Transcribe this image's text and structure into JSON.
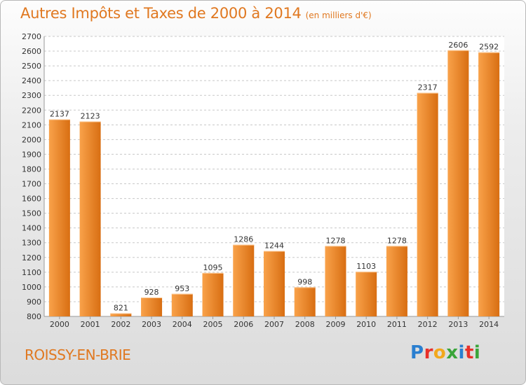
{
  "title": "Autres Impôts et Taxes de 2000 à 2014",
  "subtitle": "(en milliers d'€)",
  "place": "ROISSY-EN-BRIE",
  "logo": {
    "letters": [
      "P",
      "r",
      "o",
      "x",
      "i",
      "t",
      "i"
    ],
    "colors": [
      "#2a7fd0",
      "#e8302a",
      "#f2a81c",
      "#3aa53a",
      "#2a7fd0",
      "#e8302a",
      "#3aa53a"
    ]
  },
  "colors": {
    "bar_light": "#f9a24a",
    "bar_dark": "#d86e12",
    "title": "#e07820",
    "grid": "#c8c8c8"
  },
  "chart_data": {
    "type": "bar",
    "categories": [
      "2000",
      "2001",
      "2002",
      "2003",
      "2004",
      "2005",
      "2006",
      "2007",
      "2008",
      "2009",
      "2010",
      "2011",
      "2012",
      "2013",
      "2014"
    ],
    "values": [
      2137,
      2123,
      821,
      928,
      953,
      1095,
      1286,
      1244,
      998,
      1278,
      1103,
      1278,
      2317,
      2606,
      2592
    ],
    "ylim": [
      800,
      2700
    ],
    "yticks": [
      800,
      900,
      1000,
      1100,
      1200,
      1300,
      1400,
      1500,
      1600,
      1700,
      1800,
      1900,
      2000,
      2100,
      2200,
      2300,
      2400,
      2500,
      2600,
      2700
    ],
    "grid": true
  }
}
